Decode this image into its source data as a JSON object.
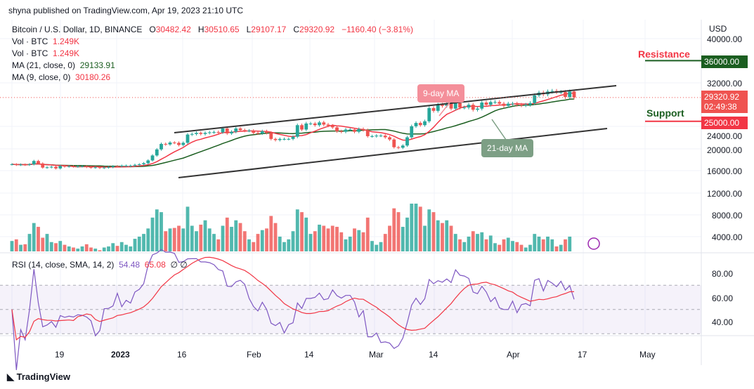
{
  "header": {
    "publisher": "shyna published on TradingView.com, Apr 19, 2023 21:10 UTC"
  },
  "legend": {
    "symbol": "Bitcoin / U.S. Dollar, 1D, BINANCE",
    "o_label": "O",
    "o": "30482.42",
    "h_label": "H",
    "h": "30510.65",
    "l_label": "L",
    "l": "29107.17",
    "c_label": "C",
    "c": "29320.92",
    "change": "−1160.40 (−3.81%)",
    "vol1_label": "Vol · BTC",
    "vol1": "1.249K",
    "vol2_label": "Vol · BTC",
    "vol2": "1.249K",
    "ma21_label": "MA (21, close, 0)",
    "ma21": "29133.91",
    "ma9_label": "MA (9, close, 0)",
    "ma9": "30180.26",
    "rsi_label": "RSI (14, close, SMA, 14, 2)",
    "rsi": "54.48",
    "rsi_ma": "65.08",
    "rsi_na": "∅ ∅"
  },
  "annotations": {
    "ma9": "9-day MA",
    "ma21": "21-day MA",
    "resistance": "Resistance",
    "support": "Support"
  },
  "price_axis": {
    "currency": "USD",
    "ticks": [
      "40000.00",
      "32000.00",
      "24000.00",
      "20000.00",
      "16000.00",
      "12000.00",
      "8000.00",
      "4000.00"
    ],
    "resistance": "36000.00",
    "support": "25000.00",
    "last": "29320.92",
    "countdown": "02:49:38"
  },
  "rsi_axis": {
    "ticks": [
      "80.00",
      "60.00",
      "40.00"
    ]
  },
  "time_axis": [
    "19",
    "2023",
    "16",
    "Feb",
    "14",
    "Mar",
    "14",
    "Apr",
    "17",
    "May"
  ],
  "footer": {
    "logo": "TradingView"
  },
  "colors": {
    "up": "#26a69a",
    "down": "#ef5350",
    "ma9": "#f23645",
    "ma21": "#1b5e20",
    "rsi": "#7e57c2",
    "rsi_ma": "#f23645",
    "resistance": "#1b5e20",
    "support": "#f23645"
  },
  "chart_data": {
    "type": "candlestick",
    "start_date": "2022-12-08",
    "end_date": "2023-04-19",
    "close": [
      17200,
      17100,
      17150,
      17100,
      17200,
      17800,
      17350,
      16600,
      16650,
      16750,
      16450,
      16900,
      16800,
      16850,
      16800,
      16830,
      16850,
      16700,
      16600,
      16650,
      16550,
      16620,
      16680,
      16850,
      16830,
      16950,
      16950,
      16950,
      17100,
      17200,
      17400,
      17900,
      18800,
      19900,
      20900,
      20800,
      21150,
      21100,
      20700,
      21100,
      22600,
      22700,
      22900,
      22700,
      22900,
      23000,
      23050,
      23000,
      23700,
      22800,
      23100,
      23700,
      23400,
      23300,
      23300,
      22900,
      22800,
      23200,
      22900,
      21800,
      21600,
      21800,
      21800,
      21800,
      22200,
      24300,
      23500,
      24600,
      24600,
      24300,
      24800,
      24400,
      24200,
      23900,
      23200,
      23100,
      23500,
      23500,
      23100,
      23600,
      23400,
      22300,
      22300,
      22400,
      22400,
      22100,
      21700,
      20300,
      20200,
      20600,
      22100,
      24100,
      24700,
      24300,
      25000,
      27400,
      26900,
      28000,
      27800,
      28200,
      27300,
      28300,
      27500,
      27500,
      28000,
      27100,
      27300,
      28400,
      28000,
      28500,
      28500,
      28200,
      27800,
      28200,
      28200,
      28000,
      27900,
      28000,
      28300,
      29700,
      30200,
      29900,
      30400,
      30500,
      30300,
      30300,
      29400,
      30400,
      29320.92
    ],
    "volume": [
      3200,
      3500,
      2500,
      2600,
      4500,
      6500,
      5800,
      3800,
      4500,
      3000,
      2800,
      3200,
      2500,
      2200,
      2000,
      1800,
      2200,
      2600,
      2000,
      1800,
      1500,
      2000,
      2200,
      2800,
      2300,
      3000,
      2500,
      2200,
      3600,
      4000,
      4500,
      5500,
      7500,
      9000,
      8500,
      5000,
      5500,
      5600,
      6000,
      5500,
      9500,
      6000,
      5000,
      6200,
      7000,
      5500,
      4500,
      3500,
      6000,
      7500,
      5800,
      7000,
      6500,
      5000,
      3500,
      3000,
      4500,
      5200,
      5500,
      7800,
      6500,
      4000,
      3000,
      3500,
      5000,
      9000,
      8500,
      7500,
      4500,
      5000,
      6200,
      6000,
      5500,
      6000,
      5800,
      4800,
      3500,
      4000,
      5500,
      5200,
      4800,
      7500,
      3200,
      2500,
      3000,
      4500,
      6000,
      9200,
      8500,
      5800,
      7500,
      12000,
      12000,
      9500,
      6000,
      9000,
      8500,
      7000,
      6500,
      7000,
      6000,
      4500,
      3500,
      3000,
      4000,
      5000,
      4500,
      4800,
      3500,
      4200,
      2800,
      2500,
      3500,
      3800,
      3200,
      3000,
      2500,
      2000,
      2500,
      4500,
      4000,
      3500,
      4000,
      3500,
      2200,
      2500,
      3500,
      4000,
      1249
    ]
  }
}
